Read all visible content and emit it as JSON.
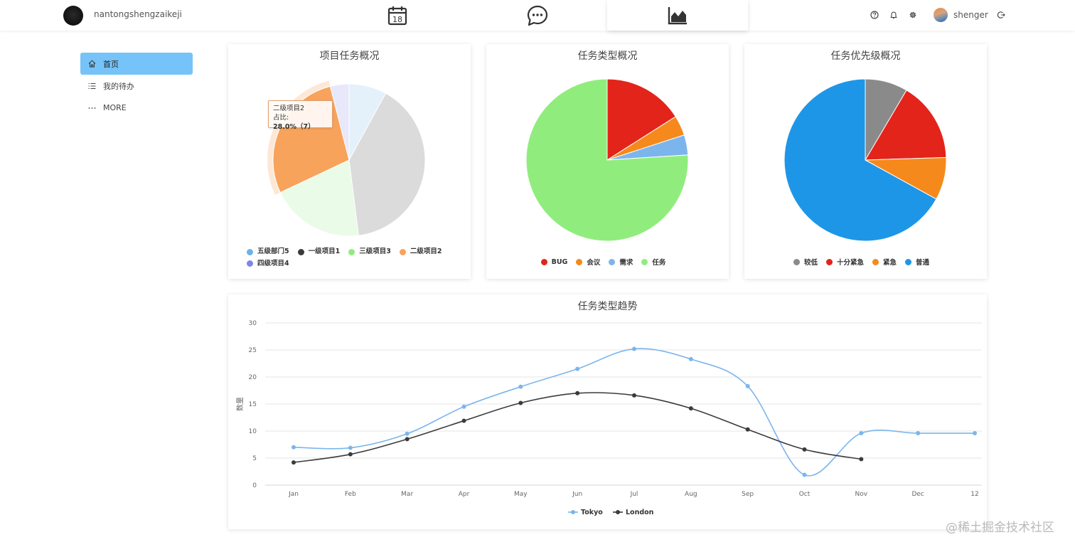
{
  "header": {
    "brand_name": "nantongshengzaikeji",
    "nav_icons": [
      "calendar-icon",
      "chat-bubble-icon",
      "area-chart-icon"
    ],
    "calendar_day": "18",
    "active_nav": "area-chart-icon",
    "right_icons": [
      "help-icon",
      "bell-icon",
      "gear-icon"
    ],
    "user_name": "shenger",
    "logout_icon": "logout-icon"
  },
  "sidebar": {
    "items": [
      {
        "label": "首页",
        "icon": "home-icon",
        "active": true
      },
      {
        "label": "我的待办",
        "icon": "list-icon",
        "active": false
      },
      {
        "label": "MORE",
        "icon": "ellipsis-icon",
        "active": false
      }
    ],
    "active_color": "#75c3f8"
  },
  "charts": {
    "project_pie": {
      "title": "项目任务概况",
      "tooltip": {
        "name": "二级项目2",
        "label": "占比:",
        "value": "28.0%（7）"
      }
    },
    "type_pie": {
      "title": "任务类型概况"
    },
    "priority_pie": {
      "title": "任务优先级概况"
    },
    "trend": {
      "title": "任务类型趋势",
      "ylabel": "数量"
    }
  },
  "chart_data": [
    {
      "type": "pie",
      "title": "项目任务概况",
      "legend": [
        "五级部门5",
        "一级项目1",
        "三级项目3",
        "二级项目2",
        "四级项目4"
      ],
      "slices": [
        {
          "name": "五级部门5",
          "value": 2,
          "color": "#6fb0e6"
        },
        {
          "name": "一级项目1",
          "value": 10,
          "color": "#3b3b3b"
        },
        {
          "name": "三级项目3",
          "value": 5,
          "color": "#90ed7d"
        },
        {
          "name": "二级项目2",
          "value": 7,
          "color": "#f7a35c"
        },
        {
          "name": "四级项目4",
          "value": 1,
          "color": "#8085e9"
        }
      ],
      "highlighted": "二级项目2"
    },
    {
      "type": "pie",
      "title": "任务类型概况",
      "legend": [
        "BUG",
        "会议",
        "需求",
        "任务"
      ],
      "slices": [
        {
          "name": "BUG",
          "value": 16,
          "color": "#e3241b"
        },
        {
          "name": "会议",
          "value": 4,
          "color": "#f6891b"
        },
        {
          "name": "需求",
          "value": 4,
          "color": "#7cb5ec"
        },
        {
          "name": "任务",
          "value": 76,
          "color": "#90ed7d"
        }
      ]
    },
    {
      "type": "pie",
      "title": "任务优先级概况",
      "legend": [
        "较低",
        "十分紧急",
        "紧急",
        "普通"
      ],
      "slices": [
        {
          "name": "较低",
          "value": 8.5,
          "color": "#8a8a8a"
        },
        {
          "name": "十分紧急",
          "value": 16,
          "color": "#e3241b"
        },
        {
          "name": "紧急",
          "value": 8.5,
          "color": "#f6891b"
        },
        {
          "name": "普通",
          "value": 67,
          "color": "#1e96e8"
        }
      ]
    },
    {
      "type": "line",
      "title": "任务类型趋势",
      "ylabel": "数量",
      "categories": [
        "Jan",
        "Feb",
        "Mar",
        "Apr",
        "May",
        "Jun",
        "Jul",
        "Aug",
        "Sep",
        "Oct",
        "Nov",
        "Dec",
        "12"
      ],
      "yticks": [
        0,
        5,
        10,
        15,
        20,
        25,
        30
      ],
      "ylim": [
        0,
        30
      ],
      "grid": true,
      "legend_position": "bottom",
      "series": [
        {
          "name": "Tokyo",
          "color": "#7cb5ec",
          "values": [
            7.0,
            6.9,
            9.5,
            14.5,
            18.2,
            21.5,
            25.2,
            23.3,
            18.3,
            1.9,
            9.6,
            9.6,
            9.6
          ]
        },
        {
          "name": "London",
          "color": "#3b3b3b",
          "values": [
            4.2,
            5.7,
            8.5,
            11.9,
            15.2,
            17.0,
            16.6,
            14.2,
            10.3,
            6.6,
            4.8,
            null,
            null
          ]
        }
      ]
    }
  ],
  "watermark": "@稀土掘金技术社区"
}
